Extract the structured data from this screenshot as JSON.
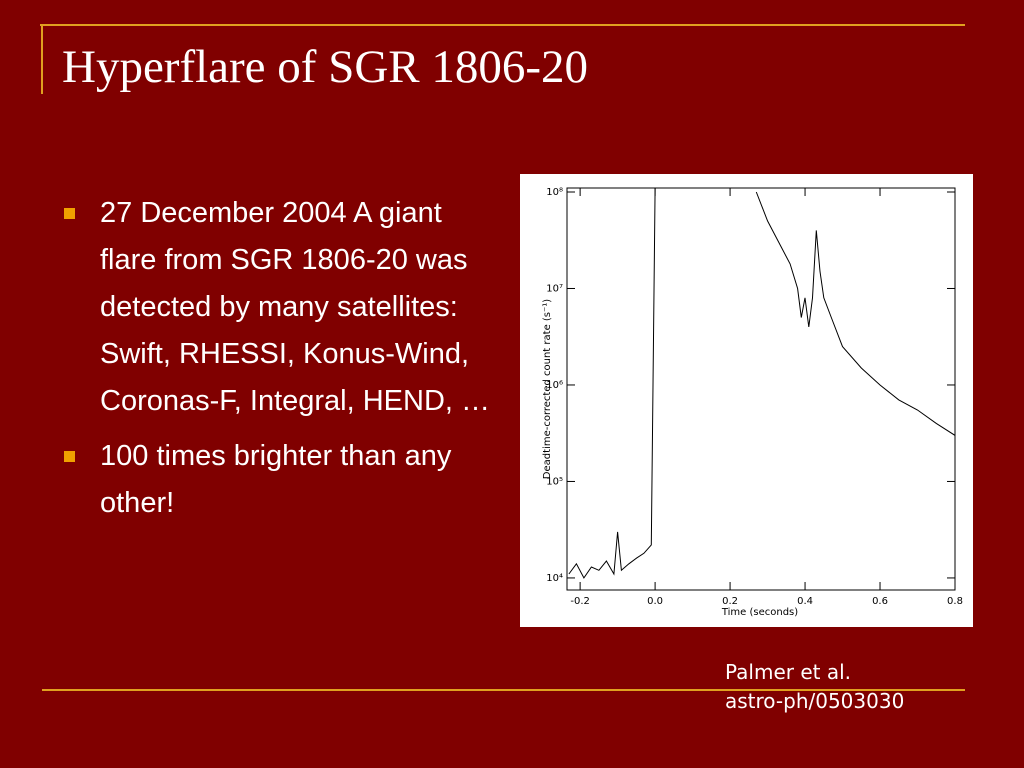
{
  "slide": {
    "title": "Hyperflare of SGR 1806-20",
    "bullets": [
      "27 December 2004 A giant flare from SGR 1806-20 was detected by many satellites: Swift, RHESSI, Konus-Wind, Coronas-F, Integral, HEND, …",
      "100 times brighter than any other!"
    ],
    "credit": [
      "Palmer et al.",
      "astro-ph/0503030"
    ]
  },
  "chart_data": {
    "type": "line",
    "xlabel": "Time (seconds)",
    "ylabel": "Deadtime-corrected count rate (s⁻¹)",
    "x": [
      -0.23,
      -0.21,
      -0.19,
      -0.17,
      -0.15,
      -0.13,
      -0.11,
      -0.1,
      -0.09,
      -0.07,
      -0.05,
      -0.03,
      -0.01,
      0.0,
      0.1,
      0.27,
      0.3,
      0.33,
      0.36,
      0.38,
      0.39,
      0.4,
      0.41,
      0.42,
      0.43,
      0.44,
      0.45,
      0.47,
      0.5,
      0.55,
      0.6,
      0.65,
      0.7,
      0.75,
      0.8
    ],
    "series": [
      {
        "name": "count rate",
        "color": "#000000",
        "values": [
          11000,
          14000,
          10000,
          13000,
          12000,
          15000,
          11000,
          30000,
          12000,
          14000,
          16000,
          18000,
          22000,
          110000000,
          null,
          100000000,
          50000000,
          30000000,
          18000000,
          10000000,
          5000000,
          8000000,
          4000000,
          8000000,
          40000000,
          15000000,
          8000000,
          5000000,
          2500000,
          1500000,
          1000000,
          700000,
          550000,
          400000,
          300000
        ]
      }
    ],
    "xlim": [
      -0.235,
      0.8
    ],
    "ylim": [
      7500,
      110000000
    ],
    "log_y": true,
    "xticks": [
      -0.2,
      {
        "value": 0,
        "label": "0.0"
      },
      0.2,
      0.4,
      0.6,
      0.8
    ],
    "yticks": [
      {
        "value": 10000,
        "label": "10⁴"
      },
      {
        "value": 100000,
        "label": "10⁵"
      },
      {
        "value": 1000000,
        "label": "10⁶"
      },
      {
        "value": 10000000,
        "label": "10⁷"
      },
      {
        "value": 100000000,
        "label": "10⁸"
      }
    ]
  }
}
